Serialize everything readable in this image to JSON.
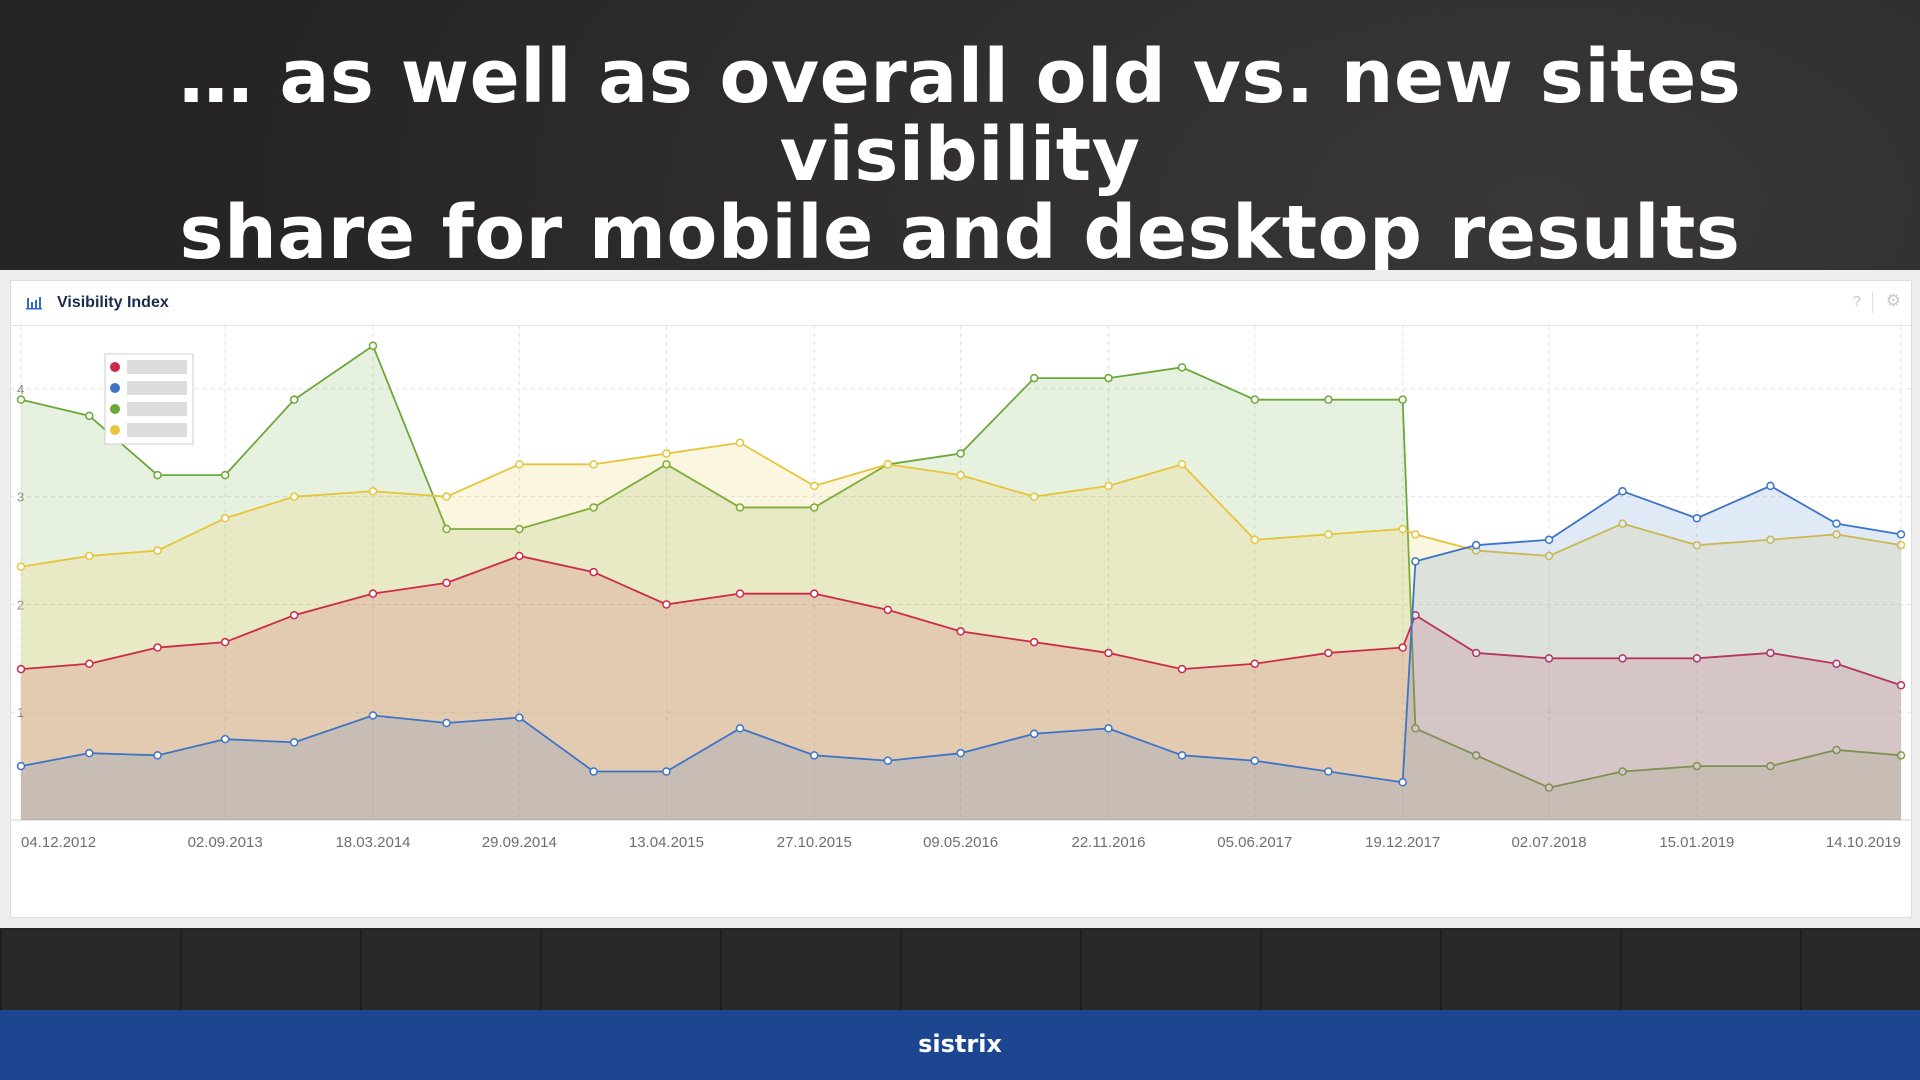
{
  "slide": {
    "title_line1": "… as well as overall old vs. new sites visibility",
    "title_line2": "share for mobile and desktop results"
  },
  "card": {
    "title": "Visibility Index",
    "help_icon": "?",
    "settings_icon": "gear-icon",
    "chart_icon": "bar-chart-icon"
  },
  "footer": {
    "brand": "sistrix"
  },
  "colors": {
    "red": "#cc2a4a",
    "blue": "#3d74c6",
    "green": "#6aa83a",
    "yellow": "#e6c53c"
  },
  "chart_data": {
    "type": "area",
    "title": "Visibility Index",
    "xlabel": "",
    "ylabel": "",
    "ylim": [
      0,
      4.5
    ],
    "yticks": [
      1,
      2,
      3,
      4
    ],
    "grid": true,
    "legend_position": "top-left",
    "xtick_labels": [
      "04.12.2012",
      "02.09.2013",
      "18.03.2014",
      "29.09.2014",
      "13.04.2015",
      "27.10.2015",
      "09.05.2016",
      "22.11.2016",
      "05.06.2017",
      "19.12.2017",
      "02.07.2018",
      "15.01.2019",
      "14.10.2019"
    ],
    "x": [
      "04.12.2012",
      "05.03.2013",
      "04.06.2013",
      "02.09.2013",
      "03.12.2013",
      "18.03.2014",
      "24.06.2014",
      "29.09.2014",
      "06.01.2015",
      "13.04.2015",
      "20.07.2015",
      "27.10.2015",
      "02.02.2016",
      "09.05.2016",
      "15.08.2016",
      "22.11.2016",
      "28.02.2017",
      "05.06.2017",
      "11.09.2017",
      "19.12.2017",
      "05.01.2018",
      "27.03.2018",
      "02.07.2018",
      "08.10.2018",
      "15.01.2019",
      "23.04.2019",
      "20.07.2019",
      "14.10.2019"
    ],
    "series": [
      {
        "name": "",
        "color": "red",
        "values": [
          1.4,
          1.45,
          1.6,
          1.65,
          1.9,
          2.1,
          2.2,
          2.45,
          2.3,
          2.0,
          2.1,
          2.1,
          1.95,
          1.75,
          1.65,
          1.55,
          1.4,
          1.45,
          1.55,
          1.6,
          1.9,
          1.55,
          1.5,
          1.5,
          1.5,
          1.55,
          1.45,
          1.25
        ]
      },
      {
        "name": "",
        "color": "blue",
        "values": [
          0.5,
          0.62,
          0.6,
          0.75,
          0.72,
          0.97,
          0.9,
          0.95,
          0.45,
          0.45,
          0.85,
          0.6,
          0.55,
          0.62,
          0.8,
          0.85,
          0.6,
          0.55,
          0.45,
          0.35,
          2.4,
          2.55,
          2.6,
          3.05,
          2.8,
          3.1,
          2.75,
          2.65
        ]
      },
      {
        "name": "",
        "color": "green",
        "values": [
          3.9,
          3.75,
          3.2,
          3.2,
          3.9,
          4.4,
          2.7,
          2.7,
          2.9,
          3.3,
          2.9,
          2.9,
          3.3,
          3.4,
          4.1,
          4.1,
          4.2,
          3.9,
          3.9,
          3.9,
          0.85,
          0.6,
          0.3,
          0.45,
          0.5,
          0.5,
          0.65,
          0.6
        ]
      },
      {
        "name": "",
        "color": "yellow",
        "values": [
          2.35,
          2.45,
          2.5,
          2.8,
          3.0,
          3.05,
          3.0,
          3.3,
          3.3,
          3.4,
          3.5,
          3.1,
          3.3,
          3.2,
          3.0,
          3.1,
          3.3,
          2.6,
          2.65,
          2.7,
          2.65,
          2.5,
          2.45,
          2.75,
          2.55,
          2.6,
          2.65,
          2.55
        ]
      }
    ]
  }
}
